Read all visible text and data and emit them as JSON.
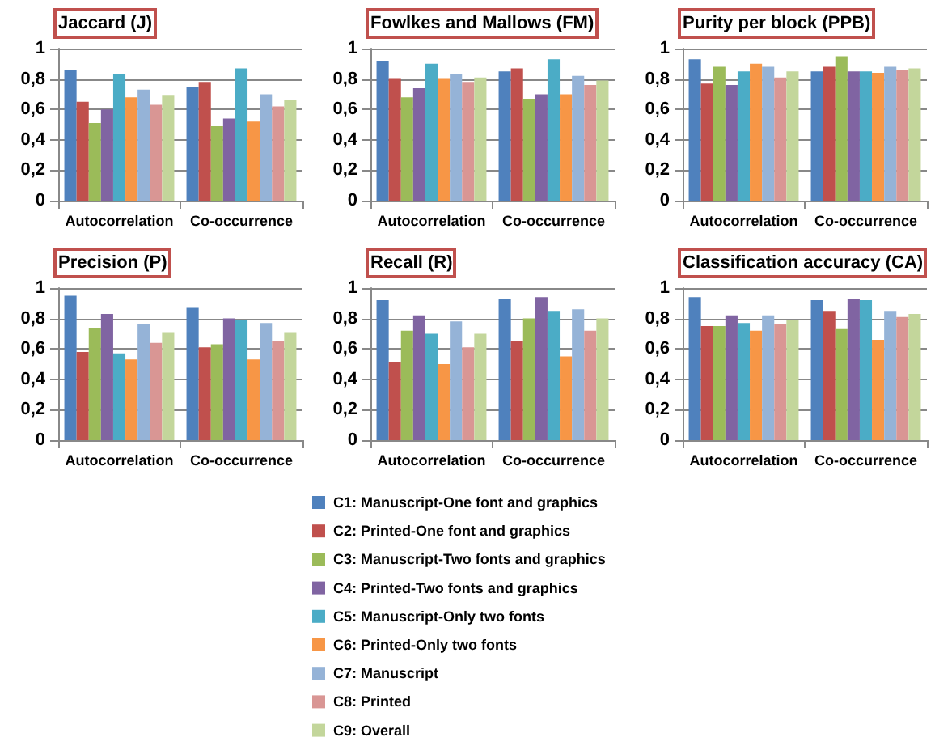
{
  "chart_data": [
    {
      "type": "bar",
      "title": "Jaccard (J)",
      "categories": [
        "Autocorrelation",
        "Co-occurrence"
      ],
      "ylim": [
        0,
        1
      ],
      "yticks": [
        {
          "value": 0,
          "label": "0"
        },
        {
          "value": 0.2,
          "label": "0,2"
        },
        {
          "value": 0.4,
          "label": "0,4"
        },
        {
          "value": 0.6,
          "label": "0,6"
        },
        {
          "value": 0.8,
          "label": "0,8"
        },
        {
          "value": 1,
          "label": "1"
        }
      ],
      "grid": "y",
      "series": [
        {
          "color": "#4f81bd",
          "values": [
            0.86,
            0.75
          ]
        },
        {
          "color": "#c0504d",
          "values": [
            0.65,
            0.78
          ]
        },
        {
          "color": "#9bbb59",
          "values": [
            0.51,
            0.49
          ]
        },
        {
          "color": "#8064a2",
          "values": [
            0.6,
            0.54
          ]
        },
        {
          "color": "#4bacc6",
          "values": [
            0.83,
            0.87
          ]
        },
        {
          "color": "#f79646",
          "values": [
            0.68,
            0.52
          ]
        },
        {
          "color": "#95b3d7",
          "values": [
            0.73,
            0.7
          ]
        },
        {
          "color": "#d99694",
          "values": [
            0.63,
            0.62
          ]
        },
        {
          "color": "#c3d69b",
          "values": [
            0.69,
            0.66
          ]
        }
      ]
    },
    {
      "type": "bar",
      "title": "Fowlkes and Mallows (FM)",
      "categories": [
        "Autocorrelation",
        "Co-occurrence"
      ],
      "ylim": [
        0,
        1
      ],
      "yticks": [
        {
          "value": 0,
          "label": "0"
        },
        {
          "value": 0.2,
          "label": "0,2"
        },
        {
          "value": 0.4,
          "label": "0,4"
        },
        {
          "value": 0.6,
          "label": "0,6"
        },
        {
          "value": 0.8,
          "label": "0,8"
        },
        {
          "value": 1,
          "label": "1"
        }
      ],
      "grid": "y",
      "series": [
        {
          "color": "#4f81bd",
          "values": [
            0.92,
            0.85
          ]
        },
        {
          "color": "#c0504d",
          "values": [
            0.8,
            0.87
          ]
        },
        {
          "color": "#9bbb59",
          "values": [
            0.68,
            0.67
          ]
        },
        {
          "color": "#8064a2",
          "values": [
            0.74,
            0.7
          ]
        },
        {
          "color": "#4bacc6",
          "values": [
            0.9,
            0.93
          ]
        },
        {
          "color": "#f79646",
          "values": [
            0.8,
            0.7
          ]
        },
        {
          "color": "#95b3d7",
          "values": [
            0.83,
            0.82
          ]
        },
        {
          "color": "#d99694",
          "values": [
            0.78,
            0.76
          ]
        },
        {
          "color": "#c3d69b",
          "values": [
            0.81,
            0.79
          ]
        }
      ]
    },
    {
      "type": "bar",
      "title": "Purity per block (PPB)",
      "categories": [
        "Autocorrelation",
        "Co-occurrence"
      ],
      "ylim": [
        0,
        1
      ],
      "yticks": [
        {
          "value": 0,
          "label": "0"
        },
        {
          "value": 0.2,
          "label": "0,2"
        },
        {
          "value": 0.4,
          "label": "0,4"
        },
        {
          "value": 0.6,
          "label": "0,6"
        },
        {
          "value": 0.8,
          "label": "0,8"
        },
        {
          "value": 1,
          "label": "1"
        }
      ],
      "grid": "y",
      "series": [
        {
          "color": "#4f81bd",
          "values": [
            0.93,
            0.85
          ]
        },
        {
          "color": "#c0504d",
          "values": [
            0.77,
            0.88
          ]
        },
        {
          "color": "#9bbb59",
          "values": [
            0.88,
            0.95
          ]
        },
        {
          "color": "#8064a2",
          "values": [
            0.76,
            0.85
          ]
        },
        {
          "color": "#4bacc6",
          "values": [
            0.85,
            0.85
          ]
        },
        {
          "color": "#f79646",
          "values": [
            0.9,
            0.84
          ]
        },
        {
          "color": "#95b3d7",
          "values": [
            0.88,
            0.88
          ]
        },
        {
          "color": "#d99694",
          "values": [
            0.81,
            0.86
          ]
        },
        {
          "color": "#c3d69b",
          "values": [
            0.85,
            0.87
          ]
        }
      ]
    },
    {
      "type": "bar",
      "title": "Precision (P)",
      "categories": [
        "Autocorrelation",
        "Co-occurrence"
      ],
      "ylim": [
        0,
        1
      ],
      "yticks": [
        {
          "value": 0,
          "label": "0"
        },
        {
          "value": 0.2,
          "label": "0,2"
        },
        {
          "value": 0.4,
          "label": "0,4"
        },
        {
          "value": 0.6,
          "label": "0,6"
        },
        {
          "value": 0.8,
          "label": "0,8"
        },
        {
          "value": 1,
          "label": "1"
        }
      ],
      "grid": "y",
      "legend": "bottom",
      "series": [
        {
          "name": "C1: Manuscript-One font and graphics",
          "color": "#4f81bd",
          "values": [
            0.95,
            0.87
          ]
        },
        {
          "name": "C2: Printed-One font and graphics",
          "color": "#c0504d",
          "values": [
            0.58,
            0.61
          ]
        },
        {
          "name": "C3: Manuscript-Two fonts and graphics",
          "color": "#9bbb59",
          "values": [
            0.74,
            0.63
          ]
        },
        {
          "name": "C4: Printed-Two fonts and graphics",
          "color": "#8064a2",
          "values": [
            0.83,
            0.8
          ]
        },
        {
          "name": "C5: Manuscript-Only two fonts",
          "color": "#4bacc6",
          "values": [
            0.57,
            0.79
          ]
        },
        {
          "name": "C6: Printed-Only two fonts",
          "color": "#f79646",
          "values": [
            0.53,
            0.53
          ]
        },
        {
          "name": "C7: Manuscript",
          "color": "#95b3d7",
          "values": [
            0.76,
            0.77
          ]
        },
        {
          "name": "C8: Printed",
          "color": "#d99694",
          "values": [
            0.64,
            0.65
          ]
        },
        {
          "name": "C9: Overall",
          "color": "#c3d69b",
          "values": [
            0.71,
            0.71
          ]
        }
      ]
    },
    {
      "type": "bar",
      "title": "Recall (R)",
      "categories": [
        "Autocorrelation",
        "Co-occurrence"
      ],
      "ylim": [
        0,
        1
      ],
      "yticks": [
        {
          "value": 0,
          "label": "0"
        },
        {
          "value": 0.2,
          "label": "0,2"
        },
        {
          "value": 0.4,
          "label": "0,4"
        },
        {
          "value": 0.6,
          "label": "0,6"
        },
        {
          "value": 0.8,
          "label": "0,8"
        },
        {
          "value": 1,
          "label": "1"
        }
      ],
      "grid": "y",
      "series": [
        {
          "color": "#4f81bd",
          "values": [
            0.92,
            0.93
          ]
        },
        {
          "color": "#c0504d",
          "values": [
            0.51,
            0.65
          ]
        },
        {
          "color": "#9bbb59",
          "values": [
            0.72,
            0.8
          ]
        },
        {
          "color": "#8064a2",
          "values": [
            0.82,
            0.94
          ]
        },
        {
          "color": "#4bacc6",
          "values": [
            0.7,
            0.85
          ]
        },
        {
          "color": "#f79646",
          "values": [
            0.5,
            0.55
          ]
        },
        {
          "color": "#95b3d7",
          "values": [
            0.78,
            0.86
          ]
        },
        {
          "color": "#d99694",
          "values": [
            0.61,
            0.72
          ]
        },
        {
          "color": "#c3d69b",
          "values": [
            0.7,
            0.8
          ]
        }
      ]
    },
    {
      "type": "bar",
      "title": "Classification accuracy (CA)",
      "categories": [
        "Autocorrelation",
        "Co-occurrence"
      ],
      "ylim": [
        0,
        1
      ],
      "yticks": [
        {
          "value": 0,
          "label": "0"
        },
        {
          "value": 0.2,
          "label": "0,2"
        },
        {
          "value": 0.4,
          "label": "0,4"
        },
        {
          "value": 0.6,
          "label": "0,6"
        },
        {
          "value": 0.8,
          "label": "0,8"
        },
        {
          "value": 1,
          "label": "1"
        }
      ],
      "grid": "y",
      "series": [
        {
          "color": "#4f81bd",
          "values": [
            0.94,
            0.92
          ]
        },
        {
          "color": "#c0504d",
          "values": [
            0.75,
            0.85
          ]
        },
        {
          "color": "#9bbb59",
          "values": [
            0.75,
            0.73
          ]
        },
        {
          "color": "#8064a2",
          "values": [
            0.82,
            0.93
          ]
        },
        {
          "color": "#4bacc6",
          "values": [
            0.77,
            0.92
          ]
        },
        {
          "color": "#f79646",
          "values": [
            0.72,
            0.66
          ]
        },
        {
          "color": "#95b3d7",
          "values": [
            0.82,
            0.85
          ]
        },
        {
          "color": "#d99694",
          "values": [
            0.76,
            0.81
          ]
        },
        {
          "color": "#c3d69b",
          "values": [
            0.79,
            0.83
          ]
        }
      ]
    }
  ]
}
